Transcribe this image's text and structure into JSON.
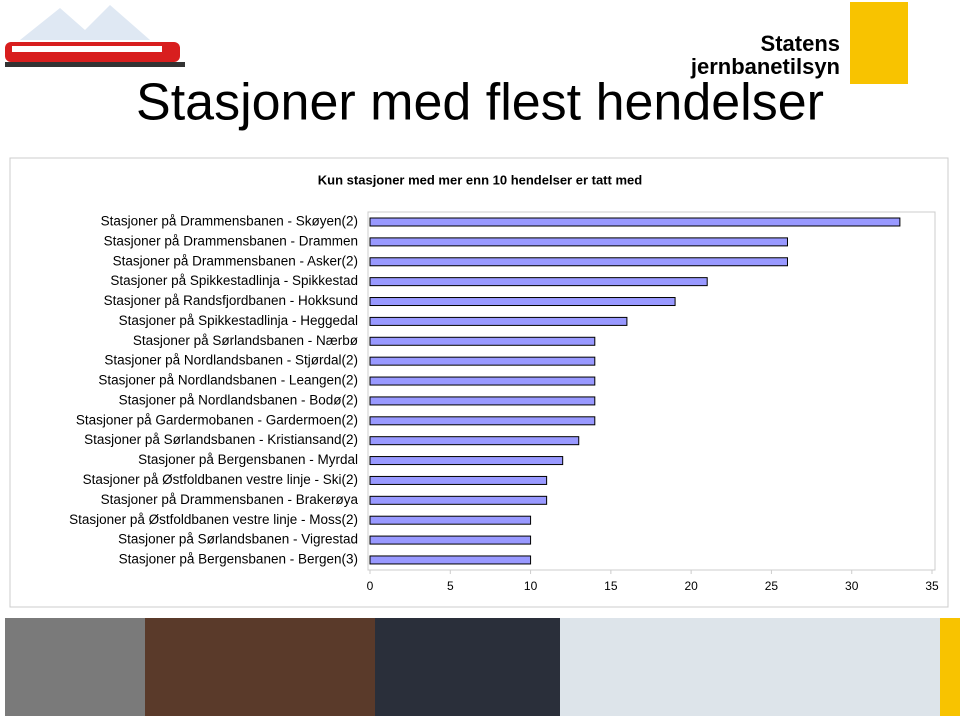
{
  "title": "Stasjoner med flest hendelser",
  "logo": {
    "line1": "Statens",
    "line2": "jernbanetilsyn"
  },
  "chart_data": {
    "type": "barh",
    "title": "Kun stasjoner med mer enn 10 hendelser er tatt med",
    "categories": [
      "Stasjoner på Drammensbanen - Skøyen(2)",
      "Stasjoner på Drammensbanen - Drammen",
      "Stasjoner på Drammensbanen - Asker(2)",
      "Stasjoner på Spikkestadlinja - Spikkestad",
      "Stasjoner på Randsfjordbanen - Hokksund",
      "Stasjoner på Spikkestadlinja - Heggedal",
      "Stasjoner på Sørlandsbanen - Nærbø",
      "Stasjoner på Nordlandsbanen - Stjørdal(2)",
      "Stasjoner på Nordlandsbanen - Leangen(2)",
      "Stasjoner på Nordlandsbanen - Bodø(2)",
      "Stasjoner på Gardermobanen - Gardermoen(2)",
      "Stasjoner på Sørlandsbanen - Kristiansand(2)",
      "Stasjoner på Bergensbanen - Myrdal",
      "Stasjoner på Østfoldbanen vestre linje - Ski(2)",
      "Stasjoner på Drammensbanen - Brakerøya",
      "Stasjoner på Østfoldbanen vestre linje - Moss(2)",
      "Stasjoner på Sørlandsbanen - Vigrestad",
      "Stasjoner på Bergensbanen - Bergen(3)"
    ],
    "values": [
      33,
      26,
      26,
      21,
      19,
      16,
      14,
      14,
      14,
      14,
      14,
      13,
      12,
      11,
      11,
      10,
      10,
      10
    ],
    "color": "#9999ff",
    "xlim": [
      0,
      35
    ],
    "xticks": [
      0,
      5,
      10,
      15,
      20,
      25,
      30,
      35
    ]
  }
}
